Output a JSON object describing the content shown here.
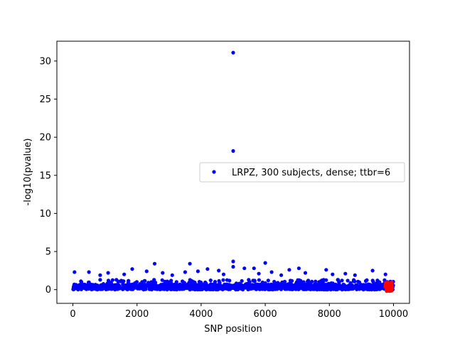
{
  "chart_data": {
    "type": "scatter",
    "title": "",
    "xlabel": "SNP position",
    "ylabel": "-log10(pvalue)",
    "xlim": [
      -500,
      10500
    ],
    "ylim": [
      -1.8,
      32.6
    ],
    "xticks": [
      0,
      2000,
      4000,
      6000,
      8000,
      10000
    ],
    "yticks": [
      0,
      5,
      10,
      15,
      20,
      25,
      30
    ],
    "grid": false,
    "legend": {
      "placement": "center-right",
      "entries": [
        "LRPZ, 300 subjects, dense; ttbr=6"
      ]
    },
    "colors": {
      "series": "#0000ff",
      "highlight": "#ff0000"
    },
    "series": [
      {
        "name": "LRPZ, 300 subjects, dense; ttbr=6",
        "bulk": {
          "x_range": [
            0,
            10000
          ],
          "y_range": [
            0,
            1.3
          ],
          "approx_count": 10000
        },
        "points": [
          {
            "x": 5000,
            "y": 31.1
          },
          {
            "x": 5000,
            "y": 18.2
          },
          {
            "x": 5000,
            "y": 3.7
          },
          {
            "x": 5000,
            "y": 3.0
          },
          {
            "x": 6000,
            "y": 3.5
          },
          {
            "x": 3650,
            "y": 3.4
          },
          {
            "x": 2550,
            "y": 3.4
          },
          {
            "x": 5650,
            "y": 2.8
          },
          {
            "x": 5350,
            "y": 2.8
          },
          {
            "x": 7050,
            "y": 2.8
          },
          {
            "x": 6750,
            "y": 2.6
          },
          {
            "x": 4200,
            "y": 2.7
          },
          {
            "x": 1850,
            "y": 2.7
          },
          {
            "x": 7900,
            "y": 2.6
          },
          {
            "x": 9350,
            "y": 2.5
          },
          {
            "x": 4550,
            "y": 2.5
          },
          {
            "x": 50,
            "y": 2.3
          },
          {
            "x": 500,
            "y": 2.3
          },
          {
            "x": 1100,
            "y": 2.2
          },
          {
            "x": 2300,
            "y": 2.4
          },
          {
            "x": 2800,
            "y": 2.2
          },
          {
            "x": 3500,
            "y": 2.3
          },
          {
            "x": 3900,
            "y": 2.4
          },
          {
            "x": 6200,
            "y": 2.3
          },
          {
            "x": 7250,
            "y": 2.2
          },
          {
            "x": 8500,
            "y": 2.1
          },
          {
            "x": 9750,
            "y": 2.0
          },
          {
            "x": 1600,
            "y": 2.0
          },
          {
            "x": 4700,
            "y": 2.0
          },
          {
            "x": 5800,
            "y": 2.1
          },
          {
            "x": 8100,
            "y": 2.0
          },
          {
            "x": 6500,
            "y": 1.9
          },
          {
            "x": 850,
            "y": 1.9
          },
          {
            "x": 3100,
            "y": 1.9
          },
          {
            "x": 8800,
            "y": 1.9
          }
        ]
      },
      {
        "name": "",
        "color": "highlight",
        "bulk": {
          "x_range": [
            9750,
            9950
          ],
          "y_range": [
            -0.2,
            1.0
          ],
          "approx_count": 60
        }
      }
    ]
  }
}
